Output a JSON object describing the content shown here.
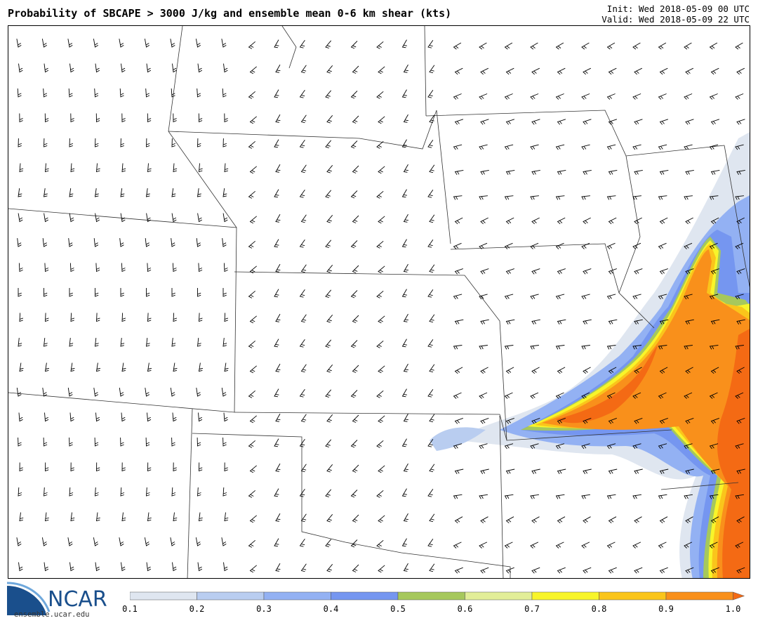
{
  "header": {
    "title": "Probability of SBCAPE > 3000 J/kg and ensemble mean 0-6 km shear (kts)",
    "init": "Init: Wed 2018-05-09 00 UTC",
    "valid": "Valid: Wed 2018-05-09 22 UTC"
  },
  "logo": {
    "name": "NCAR",
    "site": "ensemble.ucar.edu",
    "icon": "ncar-swoosh-logo"
  },
  "colorbar": {
    "ticks": [
      "0.1",
      "0.2",
      "0.3",
      "0.4",
      "0.5",
      "0.6",
      "0.7",
      "0.8",
      "0.9",
      "1.0"
    ],
    "colors": [
      "#dfe6f0",
      "#b9cdf0",
      "#93b1f3",
      "#7596f0",
      "#a6c85c",
      "#e2ee98",
      "#f8f52a",
      "#fac51b",
      "#f9901b"
    ],
    "extend_color": "#f46a14"
  },
  "map": {
    "content": "Probability shading and wind barbs over the central United States with state boundaries"
  }
}
